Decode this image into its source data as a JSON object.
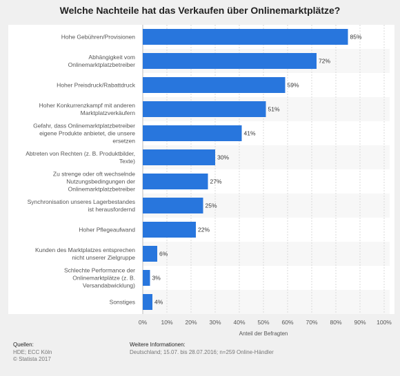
{
  "chart_data": {
    "type": "bar",
    "orientation": "horizontal",
    "title": "Welche Nachteile hat das Verkaufen über Onlinemarktplätze?",
    "xlabel": "Anteil der Befragten",
    "ylabel": "",
    "xlim": [
      0,
      100
    ],
    "xticks": [
      "0%",
      "10%",
      "20%",
      "30%",
      "40%",
      "50%",
      "60%",
      "70%",
      "80%",
      "90%",
      "100%"
    ],
    "categories": [
      [
        "Hohe Gebühren/Provisionen"
      ],
      [
        "Abhängigkeit vom",
        "Onlinemarktplatzbetreiber"
      ],
      [
        "Hoher Preisdruck/Rabattdruck"
      ],
      [
        "Hoher Konkurrenzkampf mit anderen",
        "Marktplatzverkäufern"
      ],
      [
        "Gefahr, dass Onlinemarktplatzbetreiber",
        "eigene Produkte anbietet, die unsere",
        "ersetzen"
      ],
      [
        "Abtreten von Rechten (z. B. Produktbilder,",
        "Texte)"
      ],
      [
        "Zu strenge oder oft wechselnde",
        "Nutzungsbedingungen der",
        "Onlinemarktplatzbetreiber"
      ],
      [
        "Synchronisation unseres Lagerbestandes",
        "ist herausfordernd"
      ],
      [
        "Hoher Pflegeaufwand"
      ],
      [
        "Kunden des Marktplatzes entsprechen",
        "nicht unserer Zielgruppe"
      ],
      [
        "Schlechte Performance der",
        "Onlinemarktplätze (z. B.",
        "Versandabwicklung)"
      ],
      [
        "Sonstiges"
      ]
    ],
    "values": [
      85,
      72,
      59,
      51,
      41,
      30,
      27,
      25,
      22,
      6,
      3,
      4
    ],
    "value_labels": [
      "85%",
      "72%",
      "59%",
      "51%",
      "41%",
      "30%",
      "27%",
      "25%",
      "22%",
      "6%",
      "3%",
      "4%"
    ],
    "grid": true,
    "legend": "none",
    "colors": {
      "bar": "#2876dd",
      "panel": "#ffffff",
      "stripe": "#f7f7f7",
      "grid": "#d8d8d8",
      "page": "#f0f0f0"
    }
  },
  "footer": {
    "sources_heading": "Quellen:",
    "sources_lines": [
      "HDE; ECC Köln",
      "© Statista 2017"
    ],
    "info_heading": "Weitere Informationen:",
    "info_text": "Deutschland; 15.07. bis 28.07.2016; n=259 Online-Händler"
  }
}
